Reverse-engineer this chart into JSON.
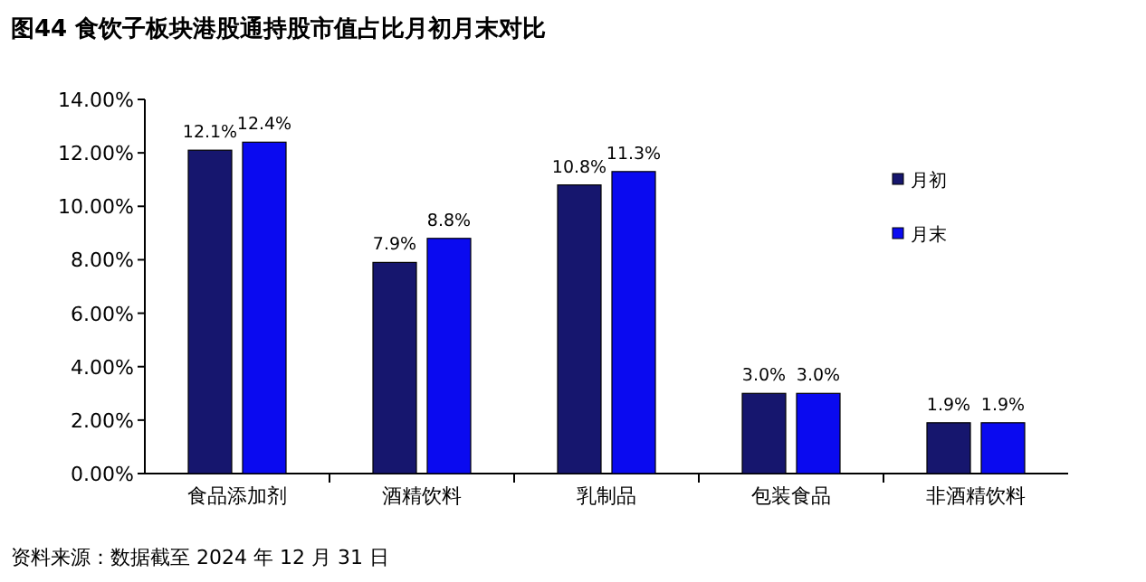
{
  "chart_data": {
    "type": "bar",
    "title": "图44 食饮子板块港股通持股市值占比月初月末对比",
    "categories": [
      "食品添加剂",
      "酒精饮料",
      "乳制品",
      "包装食品",
      "非酒精饮料"
    ],
    "series": [
      {
        "name": "月初",
        "color": "#16166e",
        "values": [
          12.1,
          7.9,
          10.8,
          3.0,
          1.9
        ],
        "value_labels": [
          "12.1%",
          "7.9%",
          "10.8%",
          "3.0%",
          "1.9%"
        ]
      },
      {
        "name": "月末",
        "color": "#0a0af0",
        "values": [
          12.4,
          8.8,
          11.3,
          3.0,
          1.9
        ],
        "value_labels": [
          "12.4%",
          "8.8%",
          "11.3%",
          "3.0%",
          "1.9%"
        ]
      }
    ],
    "ylim": [
      0,
      14
    ],
    "yticks": [
      {
        "value": 0,
        "label": "0.00%"
      },
      {
        "value": 2,
        "label": "2.00%"
      },
      {
        "value": 4,
        "label": "4.00%"
      },
      {
        "value": 6,
        "label": "6.00%"
      },
      {
        "value": 8,
        "label": "8.00%"
      },
      {
        "value": 10,
        "label": "10.00%"
      },
      {
        "value": 12,
        "label": "12.00%"
      },
      {
        "value": 14,
        "label": "14.00%"
      }
    ],
    "legend": "right",
    "annotations": [
      "资料来源：数据截至 2024 年 12 月 31 日"
    ]
  }
}
